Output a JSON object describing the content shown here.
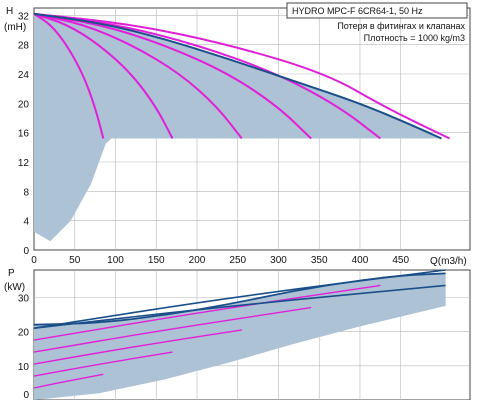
{
  "colors": {
    "band": "#aec2d6",
    "magenta": "#e020d8",
    "navy": "#1a4f8a",
    "grid": "#b8b8b8",
    "frame": "#444444"
  },
  "legend": {
    "title": "HYDRO MPC-F 6CR64-1, 50 Hz",
    "line1": "Потеря в фитингах и клапанах",
    "line2": "Плотность = 1000 kg/m3"
  },
  "chart_data": [
    {
      "type": "line",
      "panel": "head",
      "ylabel": "H",
      "yunit": "(mH)",
      "xlabel": "Q(m3/h)",
      "xlim": [
        0,
        535
      ],
      "ylim": [
        0,
        33
      ],
      "xticks": [
        "0",
        "50",
        "100",
        "150",
        "200",
        "250",
        "300",
        "350",
        "400",
        "450"
      ],
      "yticks": [
        "0",
        "4",
        "8",
        "12",
        "16",
        "20",
        "24",
        "28",
        "32"
      ],
      "operating_band": {
        "upper": [
          [
            0,
            32.2
          ],
          [
            80,
            31.0
          ],
          [
            160,
            28.8
          ],
          [
            240,
            26.0
          ],
          [
            320,
            23.0
          ],
          [
            400,
            20.0
          ],
          [
            460,
            17.2
          ],
          [
            500,
            15.2
          ]
        ],
        "floor_head": 15.2,
        "lower_left": [
          [
            0,
            2.5
          ],
          [
            20,
            1.2
          ],
          [
            45,
            4.0
          ],
          [
            70,
            9.0
          ],
          [
            88,
            14.5
          ],
          [
            95,
            15.2
          ]
        ]
      },
      "series": [
        {
          "pumps": 1,
          "values": [
            [
              0,
              32.2
            ],
            [
              20,
              30.8
            ],
            [
              40,
              28.0
            ],
            [
              60,
              24.0
            ],
            [
              75,
              19.5
            ],
            [
              85,
              15.2
            ]
          ]
        },
        {
          "pumps": 2,
          "values": [
            [
              0,
              32.2
            ],
            [
              40,
              30.8
            ],
            [
              80,
              28.0
            ],
            [
              120,
              24.0
            ],
            [
              150,
              19.5
            ],
            [
              170,
              15.2
            ]
          ]
        },
        {
          "pumps": 3,
          "values": [
            [
              0,
              32.2
            ],
            [
              60,
              30.8
            ],
            [
              120,
              28.0
            ],
            [
              180,
              24.0
            ],
            [
              225,
              19.5
            ],
            [
              255,
              15.2
            ]
          ]
        },
        {
          "pumps": 4,
          "values": [
            [
              0,
              32.2
            ],
            [
              80,
              30.8
            ],
            [
              160,
              28.0
            ],
            [
              240,
              24.0
            ],
            [
              300,
              19.5
            ],
            [
              340,
              15.2
            ]
          ]
        },
        {
          "pumps": 5,
          "values": [
            [
              0,
              32.2
            ],
            [
              100,
              30.8
            ],
            [
              200,
              28.0
            ],
            [
              300,
              24.0
            ],
            [
              375,
              19.5
            ],
            [
              425,
              15.2
            ]
          ]
        },
        {
          "pumps": 6,
          "values": [
            [
              0,
              32.2
            ],
            [
              120,
              30.8
            ],
            [
              240,
              28.0
            ],
            [
              360,
              24.0
            ],
            [
              430,
              19.5
            ],
            [
              510,
              15.2
            ]
          ]
        }
      ]
    },
    {
      "type": "line",
      "panel": "power",
      "ylabel": "P",
      "yunit": "(kW)",
      "xlim": [
        0,
        535
      ],
      "ylim": [
        0,
        38
      ],
      "yticks": [
        "0",
        "10",
        "20",
        "30"
      ],
      "operating_band": {
        "upper": [
          [
            0,
            22.0
          ],
          [
            80,
            22.5
          ],
          [
            160,
            24.8
          ],
          [
            240,
            28.0
          ],
          [
            320,
            32.0
          ],
          [
            400,
            35.0
          ],
          [
            455,
            36.5
          ],
          [
            505,
            37.0
          ]
        ],
        "lower": [
          [
            0,
            0
          ],
          [
            80,
            2.0
          ],
          [
            160,
            6.0
          ],
          [
            240,
            11.0
          ],
          [
            320,
            16.5
          ],
          [
            400,
            21.5
          ],
          [
            505,
            27.5
          ]
        ]
      },
      "series": [
        {
          "pumps": 1,
          "values": [
            [
              0,
              3.5
            ],
            [
              40,
              5.5
            ],
            [
              85,
              7.5
            ]
          ]
        },
        {
          "pumps": 2,
          "values": [
            [
              0,
              7.0
            ],
            [
              80,
              10.5
            ],
            [
              170,
              14.0
            ]
          ]
        },
        {
          "pumps": 3,
          "values": [
            [
              0,
              10.5
            ],
            [
              120,
              15.5
            ],
            [
              255,
              20.5
            ]
          ]
        },
        {
          "pumps": 4,
          "values": [
            [
              0,
              14.0
            ],
            [
              160,
              20.5
            ],
            [
              340,
              27.0
            ]
          ]
        },
        {
          "pumps": 5,
          "values": [
            [
              0,
              17.5
            ],
            [
              200,
              25.5
            ],
            [
              425,
              33.5
            ]
          ]
        },
        {
          "pumps": 6,
          "values": [
            [
              0,
              21.0
            ],
            [
              240,
              30.0
            ],
            [
              505,
              38.0
            ]
          ]
        },
        {
          "pumps": 6,
          "limit": true,
          "values": [
            [
              0,
              21.0
            ],
            [
              240,
              27.5
            ],
            [
              505,
              33.5
            ]
          ]
        }
      ]
    }
  ]
}
